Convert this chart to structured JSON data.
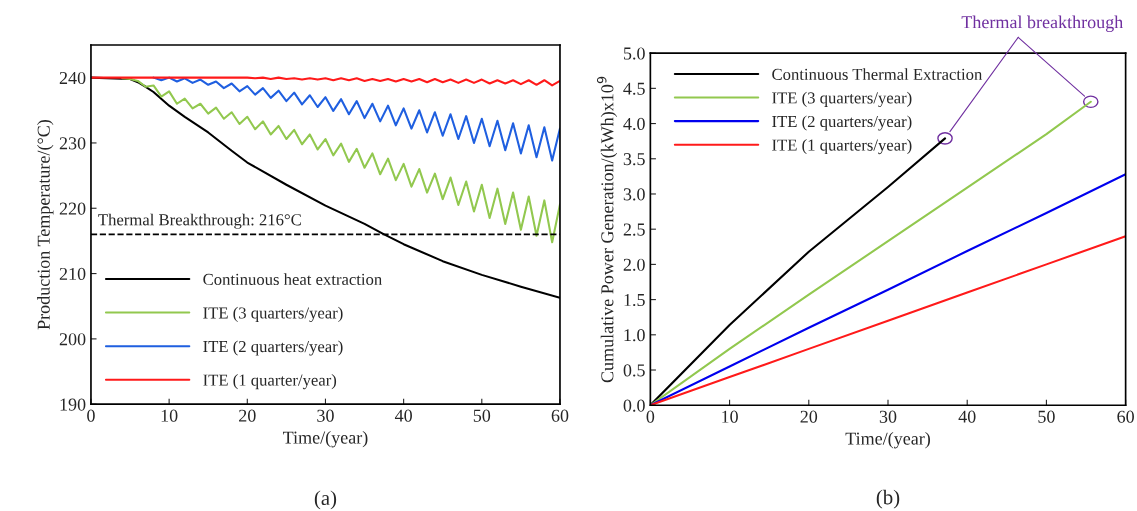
{
  "chart_data": [
    {
      "type": "line",
      "xlabel": "Time/(year)",
      "ylabel": "Production Temperature/(°C)",
      "xlim": [
        0,
        60
      ],
      "xticks": [
        0,
        10,
        20,
        30,
        40,
        50,
        60
      ],
      "ylim": [
        190,
        245
      ],
      "yticks": [
        190,
        200,
        210,
        220,
        230,
        240
      ],
      "grid": false,
      "legend": "bottom left",
      "line_style": "solid",
      "marker": "none",
      "ref_lines": [
        {
          "axis": "y",
          "value": 216,
          "label": "Thermal Breakthrough: 216°C",
          "color": "#000000",
          "line_style": "dashed"
        }
      ],
      "annotations": [
        "(a)"
      ],
      "series": [
        {
          "name": "Continuous heat extraction",
          "color": "#000000",
          "x": [
            0,
            5,
            6,
            7,
            8,
            10,
            12,
            15,
            18,
            20,
            25,
            30,
            35,
            37.5,
            40,
            45,
            50,
            55,
            60
          ],
          "values": [
            240,
            239.8,
            239.3,
            238.6,
            237.8,
            235.7,
            234.0,
            231.6,
            228.8,
            227.0,
            223.6,
            220.4,
            217.6,
            216.0,
            214.5,
            211.9,
            209.8,
            208.0,
            206.3
          ]
        },
        {
          "name": "ITE (3 quarters/year)",
          "color": "#92c84f",
          "x": [
            4,
            5,
            6,
            7,
            8,
            9,
            10,
            11,
            12,
            13,
            14,
            15,
            16,
            17,
            18,
            19,
            20,
            21,
            22,
            23,
            24,
            25,
            26,
            27,
            28,
            29,
            30,
            31,
            32,
            33,
            34,
            35,
            36,
            37,
            38,
            39,
            40,
            41,
            42,
            43,
            44,
            45,
            46,
            47,
            48,
            49,
            50,
            51,
            52,
            53,
            54,
            55,
            56,
            57,
            58,
            59,
            60
          ],
          "values": [
            239.9,
            239.8,
            239.5,
            238.6,
            238.8,
            237.1,
            237.9,
            236.0,
            236.8,
            235.3,
            236.0,
            234.5,
            235.4,
            233.7,
            234.7,
            232.9,
            234.0,
            232.1,
            233.3,
            231.3,
            232.6,
            230.6,
            232.0,
            229.8,
            231.3,
            229.0,
            230.6,
            228.1,
            229.9,
            227.1,
            229.1,
            226.2,
            228.4,
            225.2,
            227.6,
            224.3,
            226.8,
            223.3,
            226.0,
            222.4,
            225.3,
            221.4,
            224.7,
            220.5,
            224.1,
            219.5,
            223.6,
            218.5,
            223.0,
            217.6,
            222.4,
            216.7,
            221.8,
            215.8,
            221.2,
            214.8,
            220.6
          ]
        },
        {
          "name": "ITE (2 quarters/year)",
          "color": "#1f5fe0",
          "x": [
            8,
            9,
            10,
            11,
            12,
            13,
            14,
            15,
            16,
            17,
            18,
            19,
            20,
            21,
            22,
            23,
            24,
            25,
            26,
            27,
            28,
            29,
            30,
            31,
            32,
            33,
            34,
            35,
            36,
            37,
            38,
            39,
            40,
            41,
            42,
            43,
            44,
            45,
            46,
            47,
            48,
            49,
            50,
            51,
            52,
            53,
            54,
            55,
            56,
            57,
            58,
            59,
            60
          ],
          "values": [
            240,
            239.6,
            240,
            239.4,
            239.9,
            239.2,
            239.7,
            238.9,
            239.4,
            238.4,
            239.1,
            237.9,
            238.7,
            237.4,
            238.4,
            236.9,
            238.0,
            236.4,
            237.7,
            235.9,
            237.3,
            235.5,
            237.0,
            234.9,
            236.7,
            234.4,
            236.4,
            233.8,
            236.0,
            233.3,
            235.7,
            232.7,
            235.3,
            232.2,
            235.0,
            231.6,
            234.7,
            231.1,
            234.4,
            230.6,
            234.1,
            230.0,
            233.7,
            229.5,
            233.4,
            228.9,
            233.0,
            228.4,
            232.7,
            227.8,
            232.4,
            227.3,
            232.2
          ]
        },
        {
          "name": "ITE (1 quarter/year)",
          "color": "#ff1a1a",
          "x": [
            0,
            20,
            21,
            22,
            23,
            24,
            25,
            26,
            27,
            28,
            29,
            30,
            31,
            32,
            33,
            34,
            35,
            36,
            37,
            38,
            39,
            40,
            41,
            42,
            43,
            44,
            45,
            46,
            47,
            48,
            49,
            50,
            51,
            52,
            53,
            54,
            55,
            56,
            57,
            58,
            59,
            60
          ],
          "values": [
            240,
            240,
            239.9,
            240,
            239.8,
            240,
            239.8,
            239.9,
            239.7,
            239.9,
            239.7,
            239.9,
            239.6,
            239.9,
            239.6,
            239.9,
            239.5,
            239.8,
            239.5,
            239.8,
            239.4,
            239.8,
            239.4,
            239.8,
            239.3,
            239.8,
            239.3,
            239.7,
            239.2,
            239.7,
            239.2,
            239.7,
            239.1,
            239.6,
            239.1,
            239.6,
            239.0,
            239.6,
            238.9,
            239.6,
            238.8,
            239.5
          ]
        }
      ]
    },
    {
      "type": "line",
      "xlabel": "Time/(year)",
      "ylabel": "Cumulative Power Generation/(kWh)x10$^{9}$",
      "xlim": [
        0,
        60
      ],
      "xticks": [
        0,
        10,
        20,
        30,
        40,
        50,
        60
      ],
      "ylim": [
        0,
        5
      ],
      "yticks": [
        {
          "value": 0,
          "label": "0.0"
        },
        0.5,
        {
          "value": 1,
          "label": "1.0"
        },
        1.5,
        {
          "value": 2,
          "label": "2.0"
        },
        2.5,
        {
          "value": 3,
          "label": "3.0"
        },
        3.5,
        {
          "value": 4,
          "label": "4.0"
        },
        4.5,
        {
          "value": 5,
          "label": "5.0"
        }
      ],
      "grid": false,
      "legend": "top left",
      "line_style": "solid",
      "marker": "none",
      "annotations": [
        {
          "text": "Thermal breakthrough",
          "x": 37.2,
          "y": 3.79
        },
        "(b)"
      ],
      "series": [
        {
          "name": "Continuous Thermal Extraction",
          "color": "#000000",
          "x": [
            0,
            10,
            20,
            30,
            37.2
          ],
          "values": [
            0,
            1.14,
            2.18,
            3.1,
            3.79
          ]
        },
        {
          "name": "ITE (3 quarters/year)",
          "color": "#92c84f",
          "x": [
            0,
            10,
            20,
            30,
            40,
            50,
            55.6
          ],
          "values": [
            0,
            0.8,
            1.57,
            2.33,
            3.09,
            3.85,
            4.31
          ]
        },
        {
          "name": "ITE (2 quarters/year)",
          "color": "#0000ee",
          "x": [
            0,
            10,
            20,
            30,
            40,
            50,
            60
          ],
          "values": [
            0,
            0.55,
            1.1,
            1.64,
            2.19,
            2.73,
            3.28
          ]
        },
        {
          "name": "ITE (1 quarters/year)",
          "color": "#ff1a1a",
          "x": [
            0,
            10,
            20,
            30,
            40,
            50,
            60
          ],
          "values": [
            0,
            0.4,
            0.8,
            1.2,
            1.6,
            2.0,
            2.4
          ]
        }
      ]
    }
  ]
}
